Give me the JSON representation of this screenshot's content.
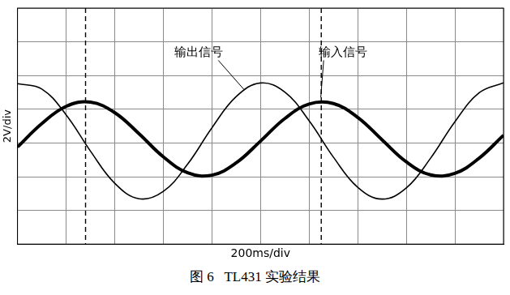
{
  "chart_data": {
    "type": "line",
    "title": "图 6   TL431 实验结果",
    "x_label": "200ms/div",
    "y_label": "2V/div",
    "x": [
      0,
      100,
      200,
      300,
      400,
      500,
      600,
      700,
      800,
      900,
      1000,
      1100,
      1200,
      1300,
      1400,
      1500,
      1600,
      1700,
      1800,
      1900,
      2000
    ],
    "series": [
      {
        "name": "输出信号",
        "color": "#000000",
        "values": [
          2.52,
          2.2,
          0.67,
          -1.48,
          -3.39,
          -4.31,
          -3.87,
          -2.26,
          -0.1,
          1.75,
          2.56,
          2.02,
          0.32,
          -1.84,
          -3.63,
          -4.33,
          -3.67,
          -1.9,
          0.26,
          1.98,
          2.57
        ],
        "label_at": [
          746,
          4.0
        ],
        "label_points_to": [
          932,
          2.17
        ]
      },
      {
        "name": "输入信号",
        "color": "#000000",
        "values": [
          -1.24,
          0.15,
          1.17,
          1.42,
          0.8,
          -0.45,
          -1.82,
          -2.77,
          -2.91,
          -2.18,
          -0.89,
          0.45,
          1.31,
          1.34,
          0.52,
          -0.81,
          -2.12,
          -2.89,
          -2.8,
          -1.9,
          -0.54
        ],
        "label_at": [
          1340,
          4.0
        ],
        "label_points_to": [
          1248,
          1.71
        ]
      }
    ],
    "xlim": [
      0,
      2000
    ],
    "xticks": [
      0,
      200,
      400,
      600,
      800,
      1000,
      1200,
      1400,
      1600,
      1800,
      2000
    ],
    "ylim": [
      -7,
      7
    ],
    "yticks": [
      -7,
      -5,
      -3,
      -1,
      1,
      3,
      5,
      7
    ],
    "vlines": [
      280,
      1250
    ],
    "grid": true,
    "tick_labels": false
  }
}
